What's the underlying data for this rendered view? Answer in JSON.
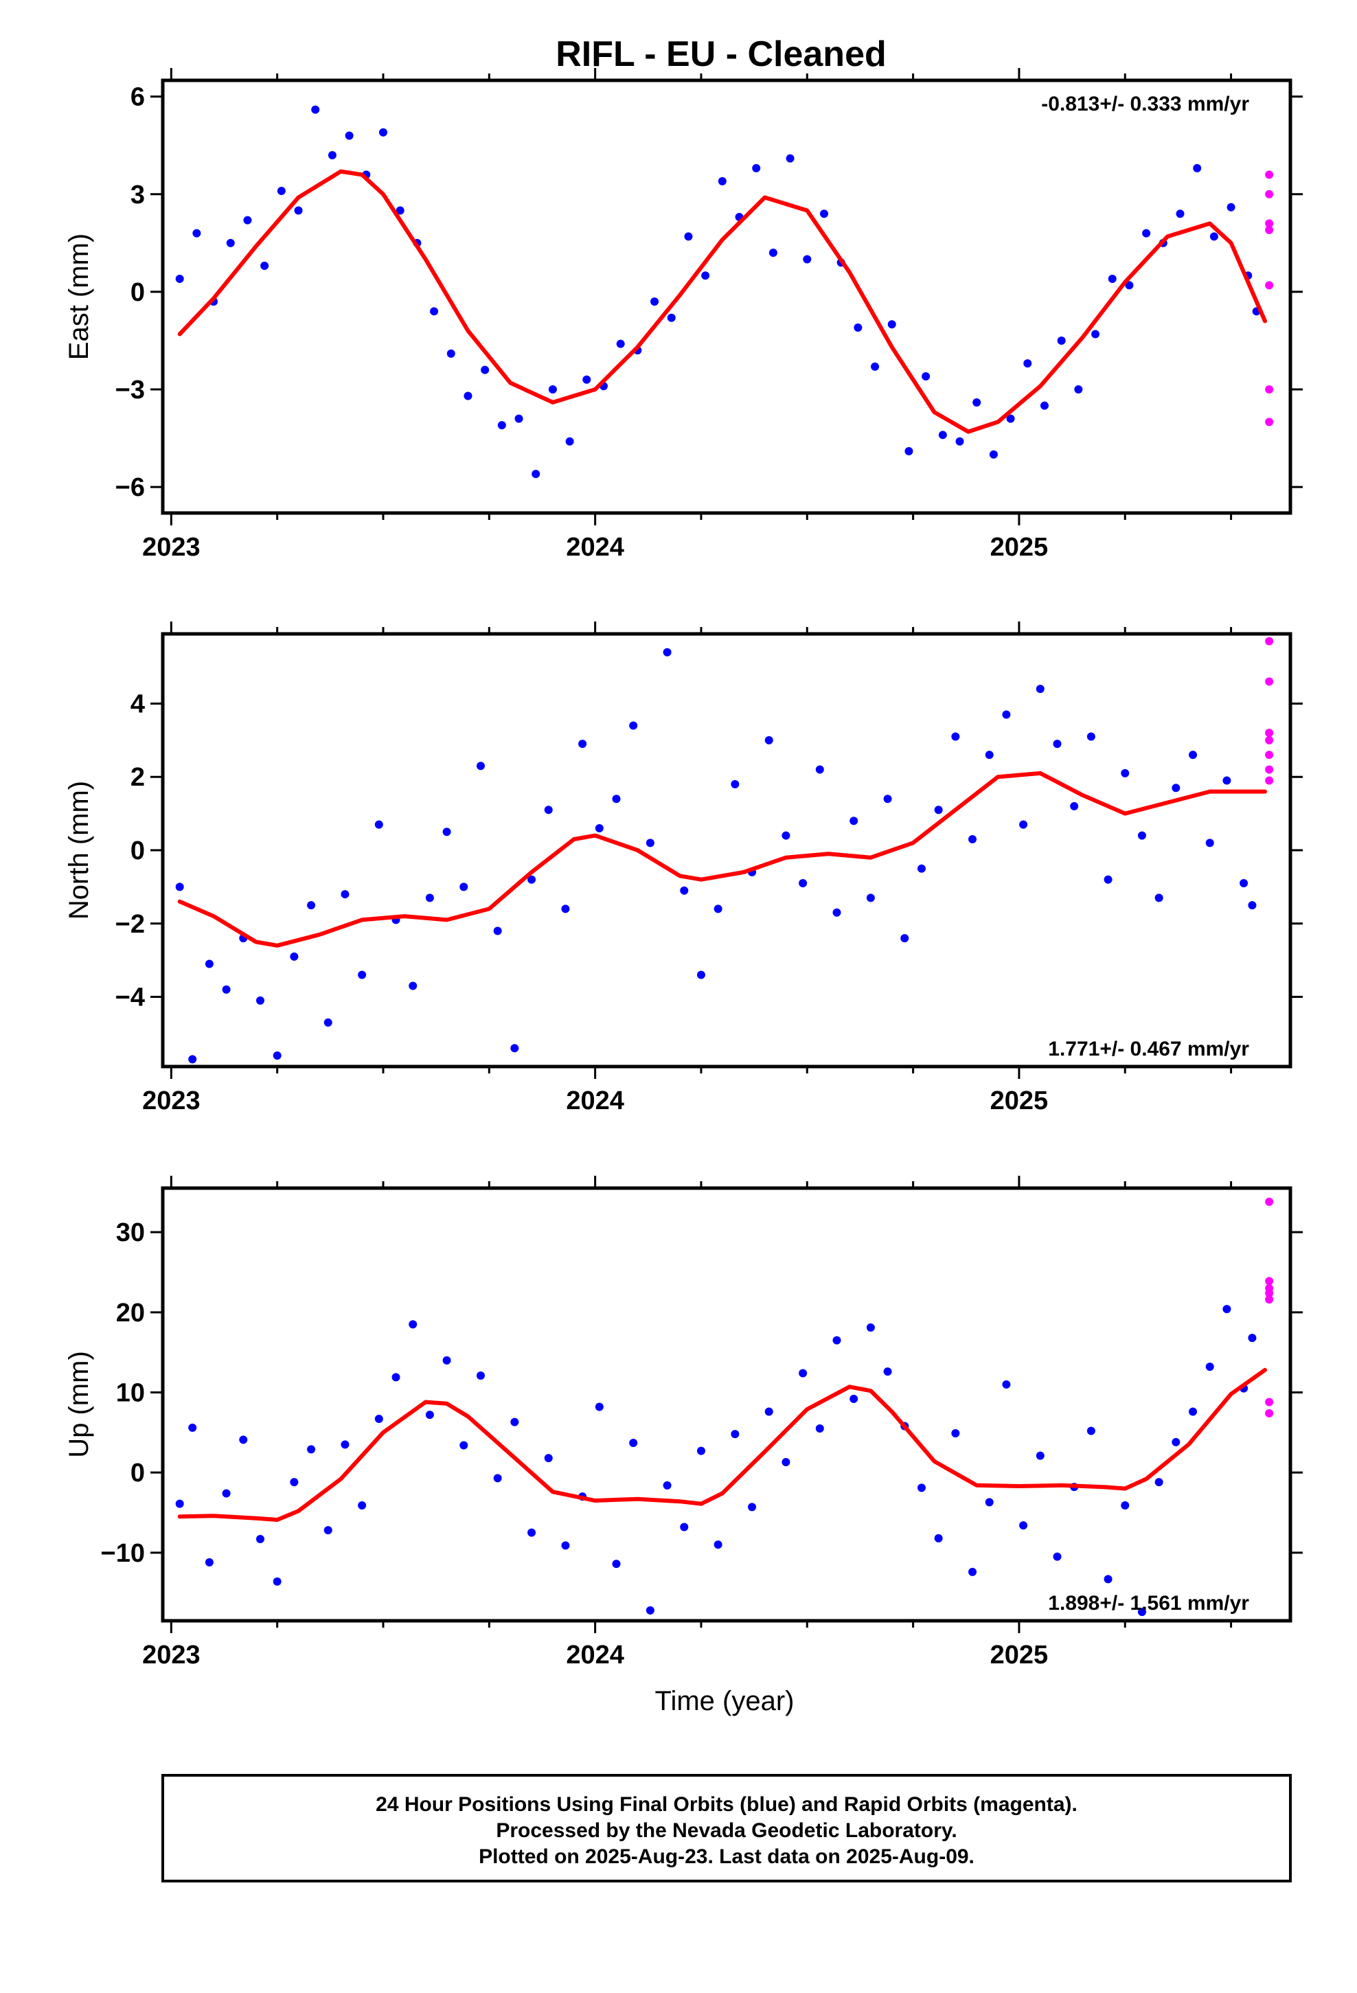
{
  "title": "RIFL  - EU - Cleaned",
  "xlabel": "Time (year)",
  "footer": {
    "line1": "24 Hour Positions Using Final Orbits (blue) and Rapid Orbits (magenta).",
    "line2": "Processed by the Nevada Geodetic Laboratory.",
    "line3": "Plotted on 2025-Aug-23. Last data on 2025-Aug-09."
  },
  "colors": {
    "final": "#0000ff",
    "rapid": "#ff00ff",
    "fit": "#ff0000",
    "frame": "#000000"
  },
  "chart_data": [
    {
      "type": "scatter",
      "ylabel": "East (mm)",
      "rate_text": "-0.813+/- 0.333 mm/yr",
      "rate_position": "top-right",
      "xlim": [
        2022.98,
        2025.64
      ],
      "ylim": [
        -6.8,
        6.5
      ],
      "yticks": [
        -6,
        -3,
        0,
        3,
        6
      ],
      "xticks": [
        2023,
        2024,
        2025
      ],
      "fit_curve": {
        "x": [
          2023.02,
          2023.1,
          2023.2,
          2023.3,
          2023.4,
          2023.45,
          2023.5,
          2023.6,
          2023.7,
          2023.8,
          2023.9,
          2024.0,
          2024.1,
          2024.2,
          2024.3,
          2024.4,
          2024.5,
          2024.6,
          2024.7,
          2024.8,
          2024.88,
          2024.95,
          2025.05,
          2025.15,
          2025.25,
          2025.35,
          2025.45,
          2025.5,
          2025.58
        ],
        "y": [
          -1.3,
          -0.2,
          1.4,
          2.9,
          3.7,
          3.6,
          3.0,
          1.0,
          -1.2,
          -2.8,
          -3.4,
          -3.0,
          -1.7,
          -0.1,
          1.6,
          2.9,
          2.5,
          0.6,
          -1.7,
          -3.7,
          -4.3,
          -4.0,
          -2.9,
          -1.4,
          0.3,
          1.7,
          2.1,
          1.5,
          -0.9
        ]
      },
      "final_series": {
        "x": [
          2023.02,
          2023.06,
          2023.1,
          2023.14,
          2023.18,
          2023.22,
          2023.26,
          2023.3,
          2023.34,
          2023.38,
          2023.42,
          2023.46,
          2023.5,
          2023.54,
          2023.58,
          2023.62,
          2023.66,
          2023.7,
          2023.74,
          2023.78,
          2023.82,
          2023.86,
          2023.9,
          2023.94,
          2023.98,
          2024.02,
          2024.06,
          2024.1,
          2024.14,
          2024.18,
          2024.22,
          2024.26,
          2024.3,
          2024.34,
          2024.38,
          2024.42,
          2024.46,
          2024.5,
          2024.54,
          2024.58,
          2024.62,
          2024.66,
          2024.7,
          2024.74,
          2024.78,
          2024.82,
          2024.86,
          2024.9,
          2024.94,
          2024.98,
          2025.02,
          2025.06,
          2025.1,
          2025.14,
          2025.18,
          2025.22,
          2025.26,
          2025.3,
          2025.34,
          2025.38,
          2025.42,
          2025.46,
          2025.5,
          2025.54,
          2025.56
        ],
        "y": [
          0.4,
          1.8,
          -0.3,
          1.5,
          2.2,
          0.8,
          3.1,
          2.5,
          5.6,
          4.2,
          4.8,
          3.6,
          4.9,
          2.5,
          1.5,
          -0.6,
          -1.9,
          -3.2,
          -2.4,
          -4.1,
          -3.9,
          -5.6,
          -3.0,
          -4.6,
          -2.7,
          -2.9,
          -1.6,
          -1.8,
          -0.3,
          -0.8,
          1.7,
          0.5,
          3.4,
          2.3,
          3.8,
          1.2,
          4.1,
          1.0,
          2.4,
          0.9,
          -1.1,
          -2.3,
          -1.0,
          -4.9,
          -2.6,
          -4.4,
          -4.6,
          -3.4,
          -5.0,
          -3.9,
          -2.2,
          -3.5,
          -1.5,
          -3.0,
          -1.3,
          0.4,
          0.2,
          1.8,
          1.5,
          2.4,
          3.8,
          1.7,
          2.6,
          0.5,
          -0.6
        ]
      },
      "rapid_series": {
        "x": [
          2025.59,
          2025.59,
          2025.59,
          2025.59,
          2025.59,
          2025.59,
          2025.59
        ],
        "y": [
          3.6,
          3.0,
          2.1,
          1.9,
          0.2,
          -3.0,
          -4.0
        ]
      }
    },
    {
      "type": "scatter",
      "ylabel": "North (mm)",
      "rate_text": "1.771+/- 0.467 mm/yr",
      "rate_position": "bottom-right",
      "xlim": [
        2022.98,
        2025.64
      ],
      "ylim": [
        -5.9,
        5.9
      ],
      "yticks": [
        -4,
        -2,
        0,
        2,
        4
      ],
      "xticks": [
        2023,
        2024,
        2025
      ],
      "fit_curve": {
        "x": [
          2023.02,
          2023.1,
          2023.2,
          2023.25,
          2023.35,
          2023.45,
          2023.55,
          2023.65,
          2023.75,
          2023.85,
          2023.95,
          2024.0,
          2024.1,
          2024.2,
          2024.25,
          2024.35,
          2024.45,
          2024.55,
          2024.65,
          2024.75,
          2024.85,
          2024.95,
          2025.05,
          2025.15,
          2025.25,
          2025.35,
          2025.45,
          2025.58
        ],
        "y": [
          -1.4,
          -1.8,
          -2.5,
          -2.6,
          -2.3,
          -1.9,
          -1.8,
          -1.9,
          -1.6,
          -0.6,
          0.3,
          0.4,
          0.0,
          -0.7,
          -0.8,
          -0.6,
          -0.2,
          -0.1,
          -0.2,
          0.2,
          1.1,
          2.0,
          2.1,
          1.5,
          1.0,
          1.3,
          1.6,
          1.6
        ]
      },
      "final_series": {
        "x": [
          2023.02,
          2023.05,
          2023.09,
          2023.13,
          2023.17,
          2023.21,
          2023.25,
          2023.29,
          2023.33,
          2023.37,
          2023.41,
          2023.45,
          2023.49,
          2023.53,
          2023.57,
          2023.61,
          2023.65,
          2023.69,
          2023.73,
          2023.77,
          2023.81,
          2023.85,
          2023.89,
          2023.93,
          2023.97,
          2024.01,
          2024.05,
          2024.09,
          2024.13,
          2024.17,
          2024.21,
          2024.25,
          2024.29,
          2024.33,
          2024.37,
          2024.41,
          2024.45,
          2024.49,
          2024.53,
          2024.57,
          2024.61,
          2024.65,
          2024.69,
          2024.73,
          2024.77,
          2024.81,
          2024.85,
          2024.89,
          2024.93,
          2024.97,
          2025.01,
          2025.05,
          2025.09,
          2025.13,
          2025.17,
          2025.21,
          2025.25,
          2025.29,
          2025.33,
          2025.37,
          2025.41,
          2025.45,
          2025.49,
          2025.53,
          2025.55
        ],
        "y": [
          -1.0,
          -5.7,
          -3.1,
          -3.8,
          -2.4,
          -4.1,
          -5.6,
          -2.9,
          -1.5,
          -4.7,
          -1.2,
          -3.4,
          0.7,
          -1.9,
          -3.7,
          -1.3,
          0.5,
          -1.0,
          2.3,
          -2.2,
          -5.4,
          -0.8,
          1.1,
          -1.6,
          2.9,
          0.6,
          1.4,
          3.4,
          0.2,
          5.4,
          -1.1,
          -3.4,
          -1.6,
          1.8,
          -0.6,
          3.0,
          0.4,
          -0.9,
          2.2,
          -1.7,
          0.8,
          -1.3,
          1.4,
          -2.4,
          -0.5,
          1.1,
          3.1,
          0.3,
          2.6,
          3.7,
          0.7,
          4.4,
          2.9,
          1.2,
          3.1,
          -0.8,
          2.1,
          0.4,
          -1.3,
          1.7,
          2.6,
          0.2,
          1.9,
          -0.9,
          -1.5
        ]
      },
      "rapid_series": {
        "x": [
          2025.59,
          2025.59,
          2025.59,
          2025.59,
          2025.59,
          2025.59,
          2025.59
        ],
        "y": [
          5.7,
          4.6,
          3.2,
          3.0,
          2.6,
          2.2,
          1.9
        ]
      }
    },
    {
      "type": "scatter",
      "ylabel": "Up (mm)",
      "rate_text": "1.898+/- 1.561 mm/yr",
      "rate_position": "bottom-right",
      "xlim": [
        2022.98,
        2025.64
      ],
      "ylim": [
        -18.5,
        35.5
      ],
      "yticks": [
        -10,
        0,
        10,
        20,
        30
      ],
      "xticks": [
        2023,
        2024,
        2025
      ],
      "fit_curve": {
        "x": [
          2023.02,
          2023.1,
          2023.2,
          2023.25,
          2023.3,
          2023.4,
          2023.5,
          2023.6,
          2023.65,
          2023.7,
          2023.8,
          2023.9,
          2024.0,
          2024.1,
          2024.2,
          2024.25,
          2024.3,
          2024.4,
          2024.5,
          2024.6,
          2024.65,
          2024.7,
          2024.8,
          2024.9,
          2025.0,
          2025.1,
          2025.2,
          2025.25,
          2025.3,
          2025.4,
          2025.5,
          2025.58
        ],
        "y": [
          -5.5,
          -5.4,
          -5.7,
          -5.9,
          -4.8,
          -0.8,
          5.0,
          8.8,
          8.6,
          7.0,
          2.3,
          -2.4,
          -3.5,
          -3.3,
          -3.6,
          -3.9,
          -2.6,
          2.6,
          7.9,
          10.7,
          10.2,
          7.6,
          1.4,
          -1.6,
          -1.7,
          -1.6,
          -1.8,
          -2.0,
          -0.8,
          3.5,
          9.8,
          12.8
        ]
      },
      "final_series": {
        "x": [
          2023.02,
          2023.05,
          2023.09,
          2023.13,
          2023.17,
          2023.21,
          2023.25,
          2023.29,
          2023.33,
          2023.37,
          2023.41,
          2023.45,
          2023.49,
          2023.53,
          2023.57,
          2023.61,
          2023.65,
          2023.69,
          2023.73,
          2023.77,
          2023.81,
          2023.85,
          2023.89,
          2023.93,
          2023.97,
          2024.01,
          2024.05,
          2024.09,
          2024.13,
          2024.17,
          2024.21,
          2024.25,
          2024.29,
          2024.33,
          2024.37,
          2024.41,
          2024.45,
          2024.49,
          2024.53,
          2024.57,
          2024.61,
          2024.65,
          2024.69,
          2024.73,
          2024.77,
          2024.81,
          2024.85,
          2024.89,
          2024.93,
          2024.97,
          2025.01,
          2025.05,
          2025.09,
          2025.13,
          2025.17,
          2025.21,
          2025.25,
          2025.29,
          2025.33,
          2025.37,
          2025.41,
          2025.45,
          2025.49,
          2025.53,
          2025.55
        ],
        "y": [
          -3.9,
          5.6,
          -11.2,
          -2.6,
          4.1,
          -8.3,
          -13.6,
          -1.2,
          2.9,
          -7.2,
          3.5,
          -4.1,
          6.7,
          11.9,
          18.5,
          7.2,
          14.0,
          3.4,
          12.1,
          -0.7,
          6.3,
          -7.5,
          1.8,
          -9.1,
          -3.0,
          8.2,
          -11.4,
          3.7,
          -17.2,
          -1.6,
          -6.8,
          2.7,
          -9.0,
          4.8,
          -4.3,
          7.6,
          1.3,
          12.4,
          5.5,
          16.5,
          9.2,
          18.1,
          12.6,
          5.8,
          -1.9,
          -8.2,
          4.9,
          -12.4,
          -3.7,
          11.0,
          -6.6,
          2.1,
          -10.5,
          -1.8,
          5.2,
          -13.3,
          -4.1,
          -17.4,
          -1.2,
          3.8,
          7.6,
          13.2,
          20.4,
          10.5,
          16.8
        ]
      },
      "rapid_series": {
        "x": [
          2025.59,
          2025.59,
          2025.59,
          2025.59,
          2025.59,
          2025.59,
          2025.59
        ],
        "y": [
          33.8,
          23.9,
          23.0,
          22.4,
          21.6,
          8.8,
          7.4
        ]
      }
    }
  ]
}
